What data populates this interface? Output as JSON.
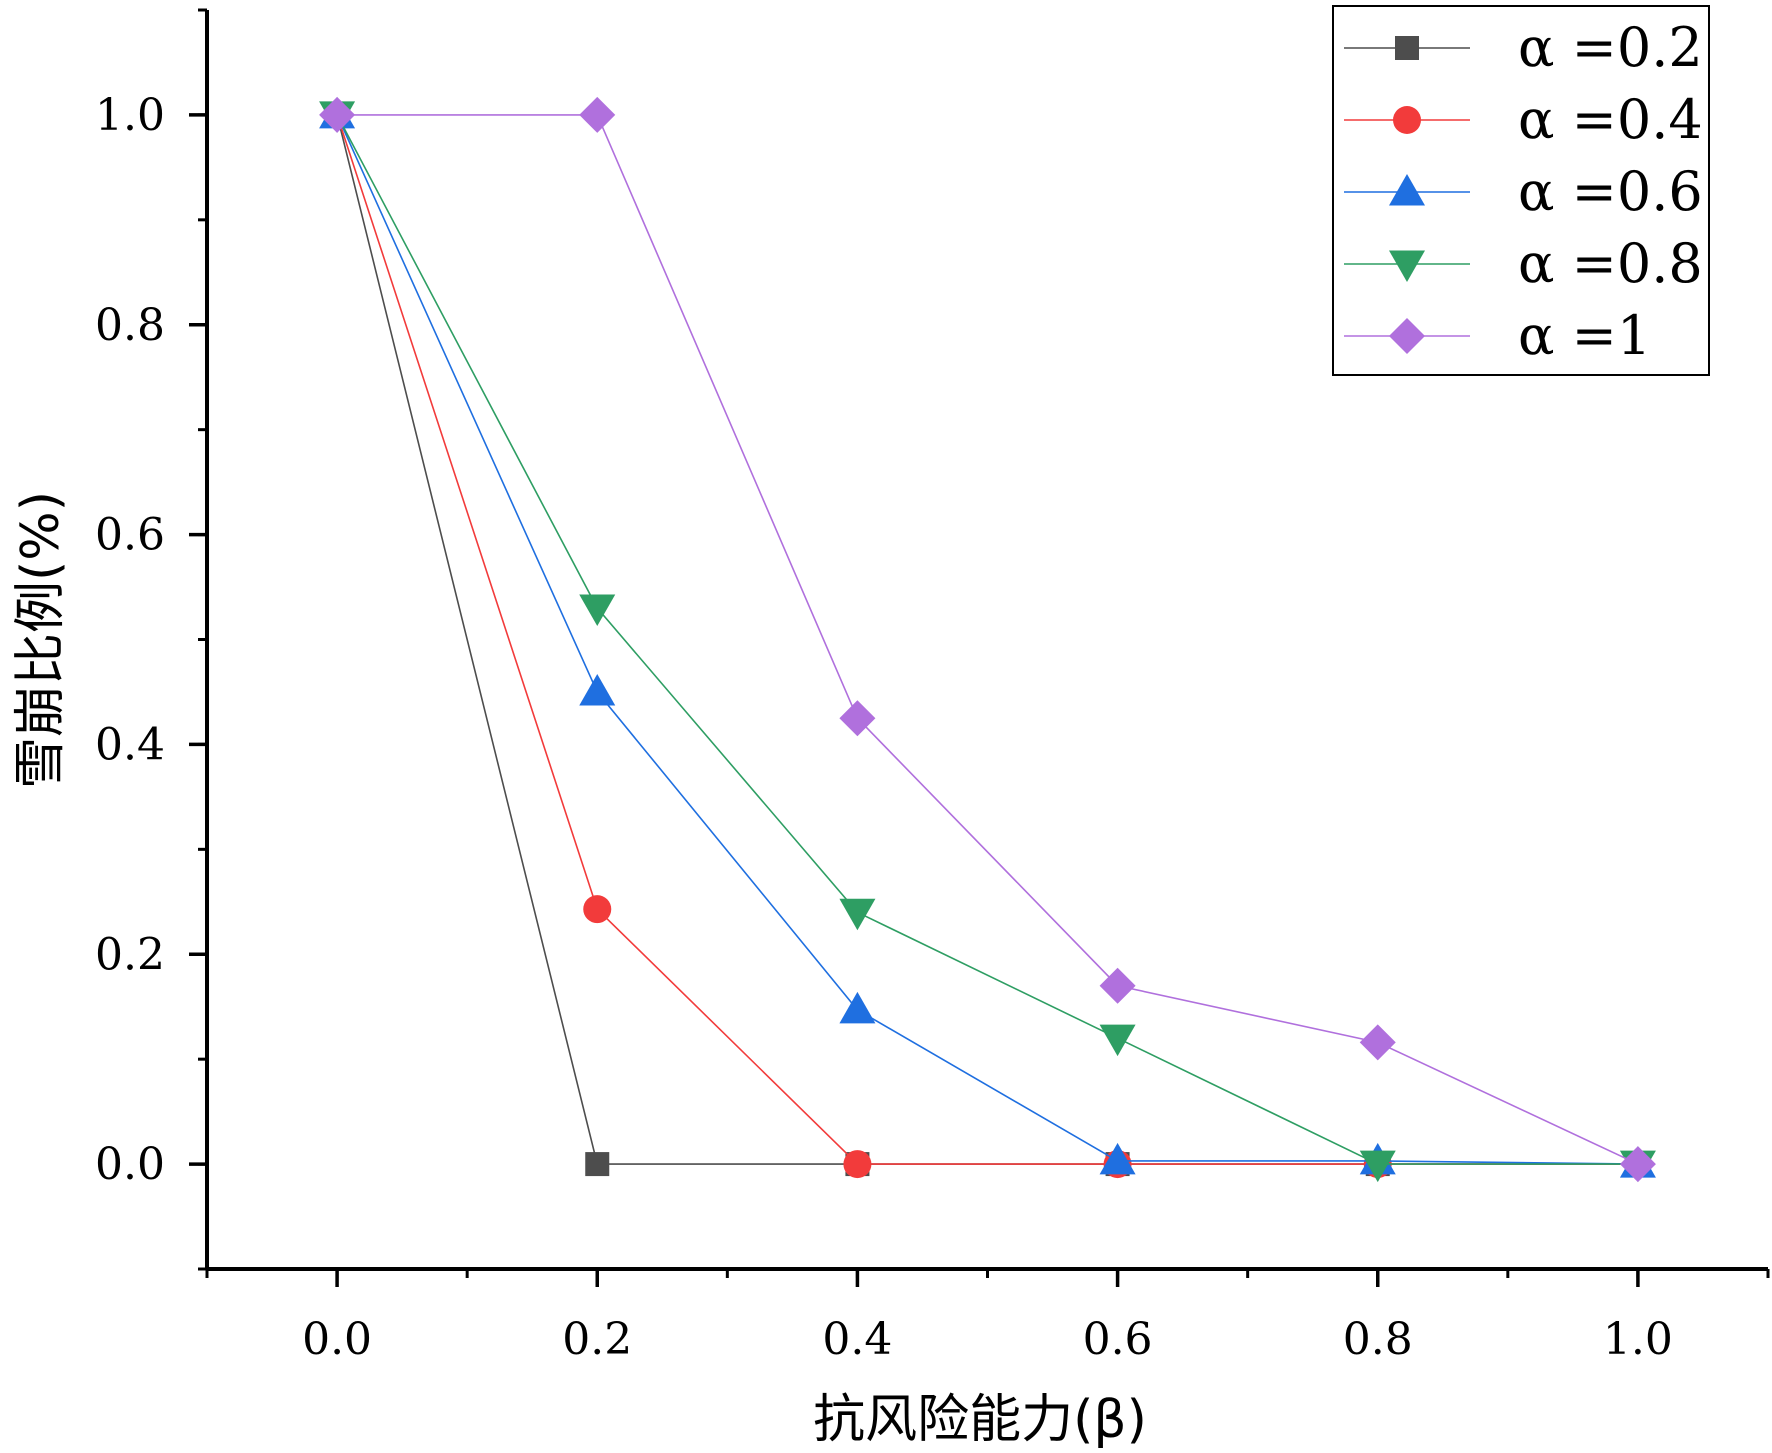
{
  "chart_data": {
    "type": "line",
    "title": "",
    "xlabel": "抗风险能力(β)",
    "ylabel": "雪崩比例(%)",
    "xlim": [
      -0.1,
      1.1
    ],
    "ylim": [
      -0.1,
      1.1
    ],
    "x_ticks": [
      0.0,
      0.2,
      0.4,
      0.6,
      0.8,
      1.0
    ],
    "x_tick_labels": [
      "0.0",
      "0.2",
      "0.4",
      "0.6",
      "0.8",
      "1.0"
    ],
    "y_ticks": [
      0.0,
      0.2,
      0.4,
      0.6,
      0.8,
      1.0
    ],
    "y_tick_labels": [
      "0.0",
      "0.2",
      "0.4",
      "0.6",
      "0.8",
      "1.0"
    ],
    "grid": false,
    "legend_position": "top-right",
    "series": [
      {
        "name": "α =0.2",
        "color": "#4d4d4d",
        "marker": "square",
        "x": [
          0.0,
          0.2,
          0.4,
          0.6,
          0.8,
          1.0
        ],
        "values": [
          1.0,
          0.0,
          0.0,
          0.0,
          0.0,
          0.0
        ]
      },
      {
        "name": "α =0.4",
        "color": "#f23b3b",
        "marker": "circle",
        "x": [
          0.0,
          0.2,
          0.4,
          0.6,
          0.8,
          1.0
        ],
        "values": [
          1.0,
          0.243,
          0.0,
          0.0,
          0.0,
          0.0
        ]
      },
      {
        "name": "α =0.6",
        "color": "#1f6fe0",
        "marker": "triangle-up",
        "x": [
          0.0,
          0.2,
          0.4,
          0.6,
          0.8,
          1.0
        ],
        "values": [
          1.0,
          0.45,
          0.147,
          0.003,
          0.003,
          0.0
        ]
      },
      {
        "name": "α =0.8",
        "color": "#2e9e63",
        "marker": "triangle-down",
        "x": [
          0.0,
          0.2,
          0.4,
          0.6,
          0.8,
          1.0
        ],
        "values": [
          1.0,
          0.53,
          0.24,
          0.12,
          0.0,
          0.0
        ]
      },
      {
        "name": "α =1",
        "color": "#b070dd",
        "marker": "diamond",
        "x": [
          0.0,
          0.2,
          0.4,
          0.6,
          0.8,
          1.0
        ],
        "values": [
          1.0,
          1.0,
          0.425,
          0.17,
          0.116,
          0.0
        ]
      }
    ]
  }
}
